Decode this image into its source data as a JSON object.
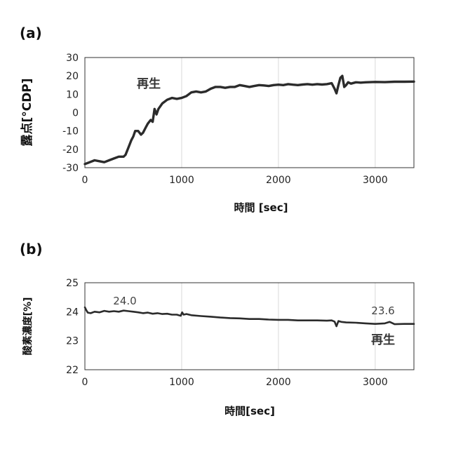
{
  "chart_data": [
    {
      "type": "line",
      "panel_label": "(a)",
      "title": "",
      "xlabel": "時間 [sec]",
      "ylabel": "露点[°CDP]",
      "xlim": [
        0,
        3400
      ],
      "ylim": [
        -30,
        30
      ],
      "xticks": [
        0,
        1000,
        2000,
        3000
      ],
      "yticks": [
        30,
        20,
        10,
        0,
        -10,
        -20,
        -30
      ],
      "grid": "vertical",
      "annotations": [
        {
          "text": "再生",
          "x": 750,
          "y": 14
        }
      ],
      "series": [
        {
          "color": "#2b2b2b",
          "x": [
            0,
            50,
            100,
            150,
            200,
            250,
            300,
            350,
            400,
            420,
            450,
            480,
            500,
            520,
            550,
            580,
            600,
            630,
            650,
            680,
            700,
            720,
            740,
            760,
            800,
            850,
            900,
            950,
            1000,
            1050,
            1100,
            1150,
            1200,
            1250,
            1300,
            1350,
            1400,
            1450,
            1500,
            1550,
            1600,
            1650,
            1700,
            1750,
            1800,
            1850,
            1900,
            1950,
            2000,
            2050,
            2100,
            2150,
            2200,
            2250,
            2300,
            2350,
            2400,
            2450,
            2500,
            2550,
            2580,
            2600,
            2620,
            2640,
            2660,
            2680,
            2700,
            2720,
            2750,
            2800,
            2850,
            2900,
            3000,
            3100,
            3200,
            3300,
            3400
          ],
          "y": [
            -28,
            -27,
            -26,
            -26.5,
            -27,
            -26,
            -25,
            -24,
            -24,
            -23,
            -19,
            -15,
            -13,
            -10,
            -10,
            -12,
            -11,
            -8,
            -6,
            -4,
            -5,
            2,
            -1,
            2,
            5,
            7,
            8,
            7.5,
            8,
            9,
            11,
            11.5,
            11,
            11.5,
            13,
            14,
            14,
            13.5,
            14,
            14,
            15,
            14.5,
            14,
            14.5,
            15,
            14.8,
            14.5,
            15,
            15.2,
            15,
            15.5,
            15.2,
            15,
            15.3,
            15.5,
            15.2,
            15.5,
            15.3,
            15.5,
            16,
            13,
            10.5,
            15,
            19,
            20,
            14,
            15,
            16.5,
            15.8,
            16.5,
            16.3,
            16.5,
            16.7,
            16.6,
            16.8,
            16.8,
            16.9
          ]
        }
      ]
    },
    {
      "type": "line",
      "panel_label": "(b)",
      "title": "",
      "xlabel": "時間[sec]",
      "ylabel": "酸素濃度[%]",
      "xlim": [
        0,
        3400
      ],
      "ylim": [
        22,
        25
      ],
      "xticks": [
        0,
        1000,
        2000,
        3000
      ],
      "yticks": [
        25,
        24,
        23,
        22
      ],
      "grid": "vertical",
      "annotations": [
        {
          "text": "24.0",
          "x": 450,
          "y": 24.2
        },
        {
          "text": "23.6",
          "x": 3050,
          "y": 23.85
        },
        {
          "text": "再生",
          "x": 3050,
          "y": 23.0
        }
      ],
      "series": [
        {
          "color": "#2b2b2b",
          "x": [
            0,
            15,
            30,
            60,
            100,
            150,
            200,
            250,
            300,
            350,
            400,
            450,
            500,
            550,
            600,
            650,
            700,
            750,
            800,
            850,
            900,
            950,
            990,
            1005,
            1020,
            1050,
            1100,
            1200,
            1300,
            1400,
            1500,
            1600,
            1700,
            1800,
            1900,
            2000,
            2100,
            2200,
            2300,
            2400,
            2500,
            2550,
            2580,
            2600,
            2620,
            2650,
            2700,
            2800,
            2900,
            3000,
            3100,
            3150,
            3200,
            3300,
            3400
          ],
          "y": [
            24.15,
            24.05,
            23.97,
            23.95,
            24.0,
            23.98,
            24.03,
            24.0,
            24.02,
            24.0,
            24.04,
            24.02,
            24.0,
            23.98,
            23.95,
            23.97,
            23.93,
            23.95,
            23.92,
            23.93,
            23.9,
            23.9,
            23.86,
            23.98,
            23.9,
            23.92,
            23.88,
            23.85,
            23.83,
            23.8,
            23.78,
            23.77,
            23.75,
            23.75,
            23.73,
            23.72,
            23.72,
            23.7,
            23.7,
            23.7,
            23.69,
            23.7,
            23.66,
            23.5,
            23.68,
            23.65,
            23.63,
            23.62,
            23.6,
            23.58,
            23.6,
            23.65,
            23.57,
            23.58,
            23.58
          ]
        }
      ]
    }
  ]
}
